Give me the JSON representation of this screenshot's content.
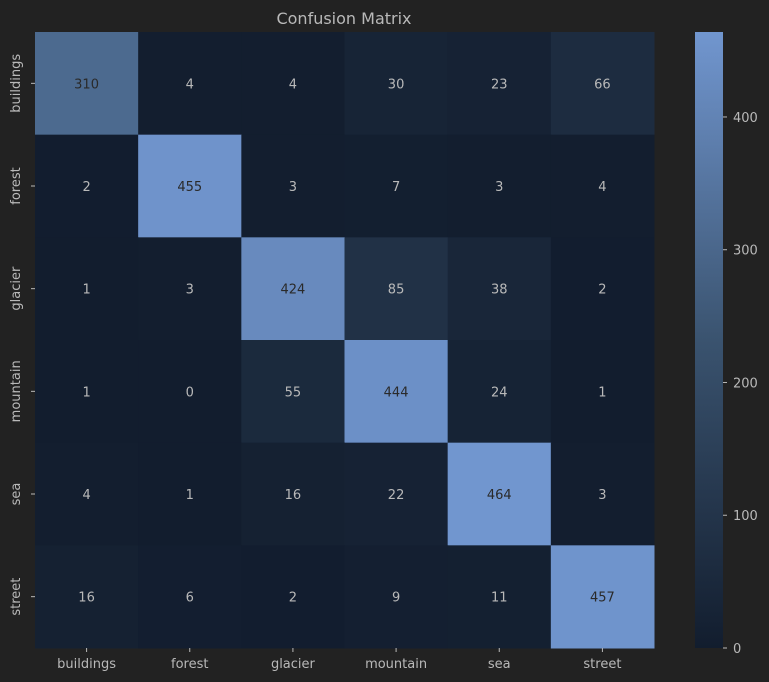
{
  "chart_data": {
    "type": "heatmap",
    "title": "Confusion Matrix",
    "xlabel": "",
    "ylabel": "",
    "x_categories": [
      "buildings",
      "forest",
      "glacier",
      "mountain",
      "sea",
      "street"
    ],
    "y_categories": [
      "buildings",
      "forest",
      "glacier",
      "mountain",
      "sea",
      "street"
    ],
    "values": [
      [
        310,
        4,
        4,
        30,
        23,
        66
      ],
      [
        2,
        455,
        3,
        7,
        3,
        4
      ],
      [
        1,
        3,
        424,
        85,
        38,
        2
      ],
      [
        1,
        0,
        55,
        444,
        24,
        1
      ],
      [
        4,
        1,
        16,
        22,
        464,
        3
      ],
      [
        16,
        6,
        2,
        9,
        11,
        457
      ]
    ],
    "colorbar": {
      "range": [
        0,
        464
      ],
      "ticks": [
        0,
        100,
        200,
        300,
        400
      ]
    },
    "colors": {
      "background": "#222222",
      "low": "#121d2e",
      "high": "#7196cf",
      "text": "#b9b9b9",
      "text_on_light": "#2a2a2a"
    },
    "grid": false,
    "legend": "colorbar-right"
  }
}
